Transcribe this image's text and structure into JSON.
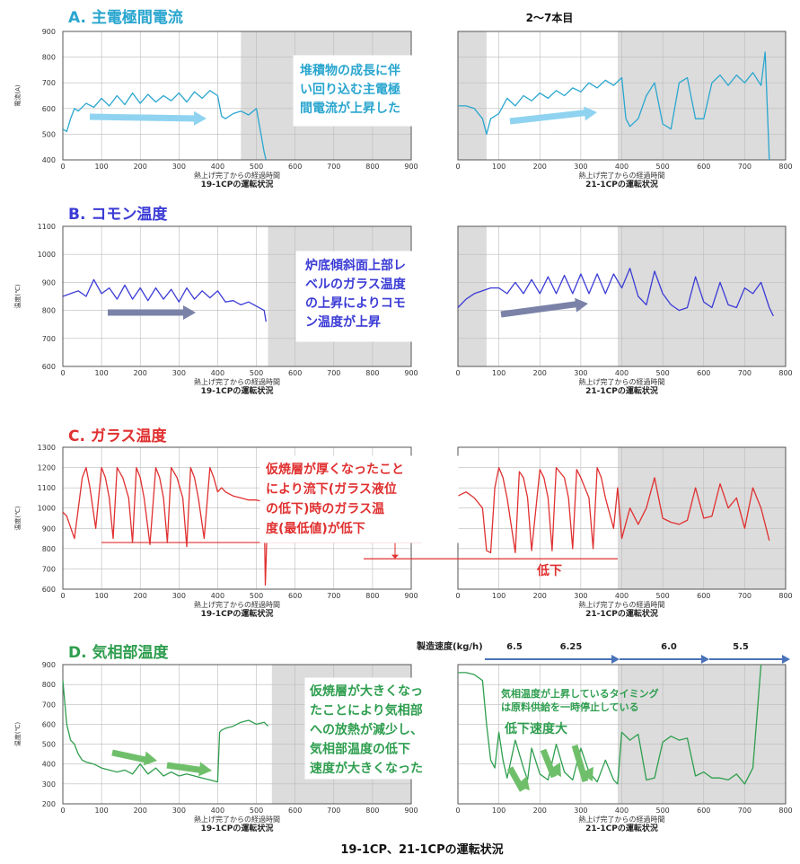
{
  "page": {
    "top_label": "2～7本目",
    "caption": "19-1CP、21-1CPの運転状況",
    "x_label": "熱上げ完了からの経過時間"
  },
  "colors": {
    "A": "#2aa6cf",
    "B": "#3b3bd6",
    "C": "#e03030",
    "D": "#2f9e4f",
    "shade": "#dcdcdc",
    "rate_arrow": "#4a72b8"
  },
  "chart_data": [
    {
      "id": "A",
      "type": "line",
      "title": "A. 主電極間電流",
      "ylabel": "電流(A)",
      "ylim": [
        400,
        900
      ],
      "yticks": [
        400,
        500,
        600,
        700,
        800,
        900
      ],
      "left": {
        "xlim": [
          0,
          900
        ],
        "xticks": [
          0,
          100,
          200,
          300,
          400,
          500,
          600,
          700,
          800,
          900
        ],
        "caption": "19-1CPの運転状況",
        "shade": [
          [
            460,
            900
          ]
        ],
        "x": [
          0,
          10,
          20,
          30,
          40,
          60,
          80,
          100,
          120,
          140,
          160,
          180,
          200,
          220,
          240,
          260,
          280,
          300,
          320,
          340,
          360,
          380,
          400,
          410,
          420,
          440,
          460,
          480,
          500,
          520,
          525
        ],
        "y": [
          520,
          510,
          560,
          600,
          590,
          620,
          605,
          640,
          610,
          650,
          615,
          660,
          620,
          655,
          625,
          650,
          630,
          660,
          625,
          665,
          640,
          670,
          650,
          570,
          560,
          580,
          590,
          575,
          600,
          430,
          400
        ]
      },
      "right": {
        "xlim": [
          0,
          800
        ],
        "xticks": [
          0,
          100,
          200,
          300,
          400,
          500,
          600,
          700,
          800
        ],
        "caption": "21-1CPの運転状況",
        "shade": [
          [
            0,
            70
          ],
          [
            390,
            800
          ]
        ],
        "x": [
          0,
          20,
          40,
          60,
          70,
          80,
          100,
          120,
          140,
          160,
          180,
          200,
          220,
          240,
          260,
          280,
          300,
          320,
          340,
          360,
          380,
          400,
          410,
          420,
          440,
          460,
          480,
          500,
          520,
          540,
          560,
          580,
          600,
          620,
          640,
          660,
          680,
          700,
          720,
          740,
          750,
          760
        ],
        "y": [
          610,
          610,
          600,
          560,
          500,
          560,
          580,
          640,
          610,
          650,
          630,
          660,
          640,
          670,
          650,
          680,
          665,
          700,
          680,
          710,
          690,
          720,
          560,
          530,
          560,
          650,
          700,
          540,
          520,
          700,
          720,
          560,
          560,
          700,
          730,
          690,
          730,
          700,
          740,
          690,
          820,
          400
        ]
      },
      "annotation": {
        "text": "堆積物の成長に伴\nい回り込む主電極\n間電流が上昇した"
      },
      "arrow_label": "上昇"
    },
    {
      "id": "B",
      "type": "line",
      "title": "B. コモン温度",
      "ylabel": "温度(℃)",
      "ylim": [
        600,
        1100
      ],
      "yticks": [
        600,
        700,
        800,
        900,
        1000,
        1100
      ],
      "left": {
        "xlim": [
          0,
          900
        ],
        "xticks": [
          0,
          100,
          200,
          300,
          400,
          500,
          600,
          700,
          800,
          900
        ],
        "caption": "19-1CPの運転状況",
        "shade": [
          [
            530,
            900
          ]
        ],
        "x": [
          0,
          20,
          40,
          60,
          80,
          100,
          120,
          140,
          160,
          180,
          200,
          220,
          240,
          260,
          280,
          300,
          320,
          340,
          360,
          380,
          400,
          420,
          440,
          460,
          480,
          500,
          520,
          525
        ],
        "y": [
          850,
          860,
          870,
          850,
          910,
          860,
          880,
          840,
          890,
          840,
          880,
          835,
          880,
          840,
          875,
          830,
          880,
          840,
          870,
          845,
          870,
          830,
          835,
          820,
          830,
          815,
          800,
          760
        ]
      },
      "right": {
        "xlim": [
          0,
          800
        ],
        "xticks": [
          0,
          100,
          200,
          300,
          400,
          500,
          600,
          700,
          800
        ],
        "caption": "21-1CPの運転状況",
        "shade": [
          [
            0,
            70
          ],
          [
            390,
            800
          ]
        ],
        "x": [
          0,
          20,
          40,
          60,
          80,
          100,
          120,
          140,
          160,
          180,
          200,
          220,
          240,
          260,
          280,
          300,
          320,
          340,
          360,
          380,
          400,
          420,
          440,
          460,
          480,
          500,
          520,
          540,
          560,
          580,
          600,
          620,
          640,
          660,
          680,
          700,
          720,
          740,
          760,
          770
        ],
        "y": [
          810,
          840,
          860,
          870,
          880,
          880,
          860,
          900,
          860,
          910,
          860,
          920,
          860,
          925,
          860,
          930,
          860,
          930,
          860,
          930,
          880,
          950,
          850,
          820,
          940,
          860,
          820,
          800,
          810,
          920,
          830,
          810,
          900,
          820,
          810,
          880,
          860,
          900,
          810,
          780
        ]
      },
      "annotation": {
        "text": "炉底傾斜面上部レ\nベルのガラス温度\nの上昇によりコモ\nン温度が上昇"
      },
      "arrow_label": "上昇"
    },
    {
      "id": "C",
      "type": "line",
      "title": "C. ガラス温度",
      "ylabel": "温度(℃)",
      "ylim": [
        600,
        1300
      ],
      "yticks": [
        600,
        700,
        800,
        900,
        1000,
        1100,
        1200,
        1300
      ],
      "left": {
        "xlim": [
          0,
          900
        ],
        "xticks": [
          0,
          100,
          200,
          300,
          400,
          500,
          600,
          700,
          800,
          900
        ],
        "caption": "19-1CPの運転状況",
        "shade": [],
        "x": [
          0,
          10,
          30,
          50,
          60,
          70,
          85,
          100,
          110,
          120,
          130,
          140,
          155,
          170,
          180,
          190,
          200,
          210,
          225,
          240,
          250,
          260,
          270,
          280,
          295,
          310,
          320,
          330,
          340,
          350,
          365,
          380,
          390,
          400,
          410,
          420,
          440,
          460,
          480,
          500,
          520,
          523,
          530
        ],
        "y": [
          980,
          960,
          850,
          1150,
          1200,
          1100,
          900,
          1200,
          1150,
          1050,
          850,
          1200,
          1150,
          1050,
          830,
          1200,
          1150,
          1050,
          820,
          1200,
          1150,
          1050,
          830,
          1200,
          1150,
          1050,
          810,
          1200,
          1150,
          1050,
          850,
          1200,
          1150,
          1080,
          1100,
          1080,
          1060,
          1050,
          1040,
          1040,
          1030,
          620,
          1040
        ]
      },
      "right": {
        "xlim": [
          0,
          800
        ],
        "xticks": [
          0,
          100,
          200,
          300,
          400,
          500,
          600,
          700,
          800
        ],
        "caption": "21-1CPの運転状況",
        "shade": [
          [
            390,
            800
          ]
        ],
        "x": [
          0,
          20,
          40,
          60,
          70,
          80,
          90,
          100,
          110,
          120,
          140,
          150,
          160,
          170,
          180,
          200,
          210,
          220,
          230,
          240,
          260,
          270,
          280,
          290,
          300,
          320,
          330,
          340,
          350,
          360,
          380,
          390,
          400,
          420,
          440,
          460,
          480,
          500,
          520,
          540,
          560,
          580,
          600,
          620,
          640,
          660,
          680,
          700,
          720,
          740,
          760
        ],
        "y": [
          1060,
          1080,
          1050,
          1000,
          790,
          780,
          1100,
          1200,
          1150,
          1050,
          780,
          1180,
          1150,
          1050,
          790,
          1190,
          1150,
          1050,
          790,
          1200,
          1150,
          1050,
          800,
          1190,
          1150,
          1050,
          800,
          1200,
          1150,
          1050,
          900,
          1100,
          850,
          1000,
          920,
          1000,
          1150,
          950,
          930,
          920,
          940,
          1100,
          950,
          960,
          1120,
          1000,
          1050,
          900,
          1100,
          1000,
          840
        ]
      },
      "annotation": {
        "text": "仮焼層が厚くなったこと\nにより流下(ガラス液位\nの低下)時のガラス温\n度(最低値)が低下"
      },
      "arrow_label": "低下"
    },
    {
      "id": "D",
      "type": "line",
      "title": "D. 気相部温度",
      "ylabel": "温度(℃)",
      "ylim": [
        200,
        900
      ],
      "yticks": [
        200,
        300,
        400,
        500,
        600,
        700,
        800,
        900
      ],
      "left": {
        "xlim": [
          0,
          900
        ],
        "xticks": [
          0,
          100,
          200,
          300,
          400,
          500,
          600,
          700,
          800,
          900
        ],
        "caption": "19-1CPの運転状況",
        "shade": [
          [
            540,
            900
          ]
        ],
        "x": [
          0,
          10,
          20,
          30,
          40,
          50,
          60,
          80,
          100,
          120,
          140,
          160,
          180,
          200,
          220,
          240,
          260,
          280,
          300,
          320,
          340,
          360,
          380,
          400,
          405,
          410,
          420,
          440,
          460,
          480,
          500,
          520,
          530
        ],
        "y": [
          820,
          600,
          520,
          500,
          450,
          420,
          410,
          400,
          380,
          370,
          360,
          370,
          350,
          400,
          350,
          380,
          340,
          360,
          340,
          350,
          340,
          330,
          320,
          310,
          560,
          570,
          580,
          590,
          610,
          620,
          600,
          610,
          590
        ]
      },
      "right": {
        "xlim": [
          0,
          800
        ],
        "xticks": [
          0,
          100,
          200,
          300,
          400,
          500,
          600,
          700,
          800
        ],
        "caption": "21-1CPの運転状況",
        "shade": [
          [
            390,
            800
          ]
        ],
        "x": [
          0,
          20,
          40,
          60,
          70,
          80,
          90,
          100,
          110,
          120,
          140,
          160,
          170,
          180,
          200,
          220,
          240,
          260,
          280,
          300,
          320,
          340,
          360,
          380,
          390,
          400,
          420,
          440,
          460,
          480,
          500,
          520,
          540,
          560,
          580,
          600,
          620,
          640,
          660,
          680,
          700,
          720,
          740
        ],
        "y": [
          860,
          860,
          850,
          820,
          600,
          420,
          380,
          560,
          420,
          330,
          520,
          380,
          320,
          480,
          350,
          320,
          500,
          360,
          320,
          480,
          360,
          310,
          420,
          320,
          300,
          560,
          520,
          550,
          320,
          330,
          510,
          540,
          520,
          530,
          340,
          360,
          330,
          330,
          320,
          350,
          300,
          380,
          900
        ]
      },
      "annotation": {
        "text": "仮焼層が大きくなっ\nたことにより気相部\nへの放熱が減少し、\n気相部温度の低下\n速度が大きくなった"
      },
      "arrow_label": "低下速度大",
      "note": "気相温度が上昇しているタイミング\nは原料供給を一時停止している",
      "rate": {
        "label": "製造速度(kg/h)",
        "values": [
          "6.5",
          "6.25",
          "6.0",
          "5.5"
        ]
      }
    }
  ]
}
